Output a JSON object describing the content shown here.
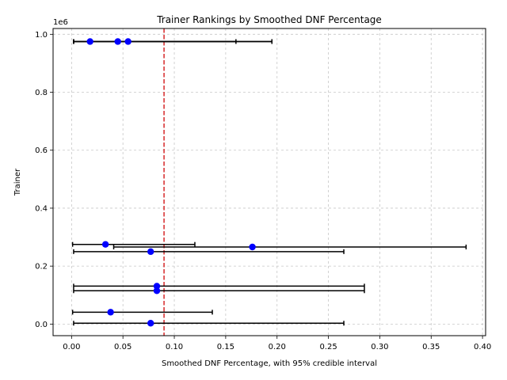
{
  "chart_data": {
    "type": "errorbar-scatter",
    "title": "Trainer Rankings by Smoothed DNF Percentage",
    "xlabel": "Smoothed DNF Percentage, with 95% credible interval",
    "ylabel": "Trainer",
    "y_offset_label": "1e6",
    "xlim": [
      -0.018,
      0.403
    ],
    "ylim": [
      -40000,
      1020000
    ],
    "x_ticks": [
      0.0,
      0.05,
      0.1,
      0.15,
      0.2,
      0.25,
      0.3,
      0.35,
      0.4
    ],
    "x_tick_labels": [
      "0.00",
      "0.05",
      "0.10",
      "0.15",
      "0.20",
      "0.25",
      "0.30",
      "0.35",
      "0.40"
    ],
    "y_ticks": [
      0,
      200000,
      400000,
      600000,
      800000,
      1000000
    ],
    "y_tick_labels": [
      "0.0",
      "0.2",
      "0.4",
      "0.6",
      "0.8",
      "1.0"
    ],
    "grid": true,
    "reference_line": {
      "x": 0.09,
      "color": "#d62728",
      "style": "dashed"
    },
    "marker_color": "#0000ff",
    "errorbar_color": "#000000",
    "points": [
      {
        "y": 975000,
        "x": 0.018,
        "lo": 0.002,
        "hi": 0.16
      },
      {
        "y": 975000,
        "x": 0.045,
        "lo": 0.002,
        "hi": 0.195
      },
      {
        "y": 975000,
        "x": 0.055,
        "lo": 0.002,
        "hi": 0.195
      },
      {
        "y": 275000,
        "x": 0.033,
        "lo": 0.001,
        "hi": 0.12
      },
      {
        "y": 266000,
        "x": 0.176,
        "lo": 0.041,
        "hi": 0.384
      },
      {
        "y": 250000,
        "x": 0.077,
        "lo": 0.002,
        "hi": 0.265
      },
      {
        "y": 131000,
        "x": 0.083,
        "lo": 0.002,
        "hi": 0.285
      },
      {
        "y": 115000,
        "x": 0.083,
        "lo": 0.002,
        "hi": 0.285
      },
      {
        "y": 41000,
        "x": 0.038,
        "lo": 0.001,
        "hi": 0.137
      },
      {
        "y": 3000,
        "x": 0.077,
        "lo": 0.002,
        "hi": 0.265
      }
    ]
  }
}
